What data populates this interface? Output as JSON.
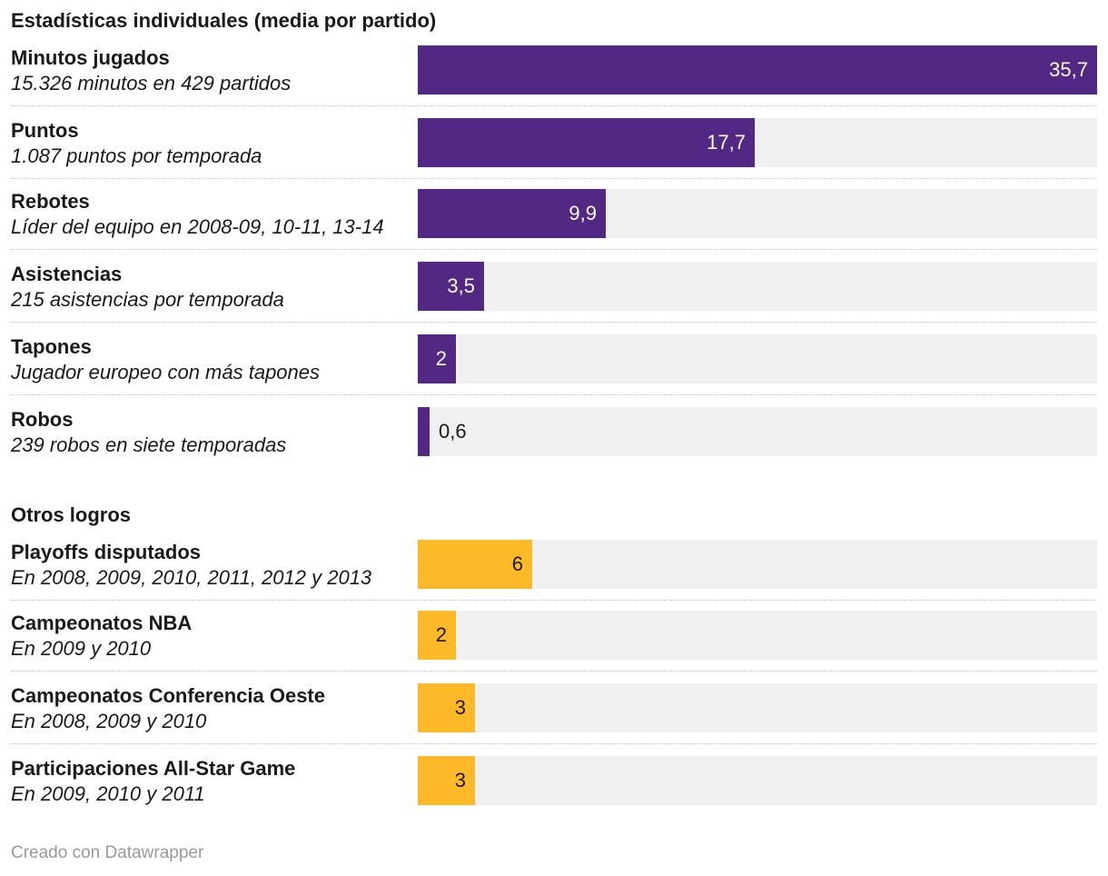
{
  "chart_data": [
    {
      "type": "bar",
      "title": "Estadísticas individuales (media por partido)",
      "bar_color": "#532784",
      "max": 35.7,
      "rows": [
        {
          "name": "Minutos jugados",
          "desc": "15.326 minutos en 429 partidos",
          "value": 35.7,
          "value_label": "35,7"
        },
        {
          "name": "Puntos",
          "desc": "1.087 puntos por temporada",
          "value": 17.7,
          "value_label": "17,7"
        },
        {
          "name": "Rebotes",
          "desc": "Líder del equipo en 2008-09, 10-11, 13-14",
          "value": 9.9,
          "value_label": "9,9"
        },
        {
          "name": "Asistencias",
          "desc": "215 asistencias por temporada",
          "value": 3.5,
          "value_label": "3,5"
        },
        {
          "name": "Tapones",
          "desc": "Jugador europeo con más tapones",
          "value": 2,
          "value_label": "2"
        },
        {
          "name": "Robos",
          "desc": "239 robos en siete temporadas",
          "value": 0.6,
          "value_label": "0,6"
        }
      ]
    },
    {
      "type": "bar",
      "title": "Otros logros",
      "bar_color": "#fdb927",
      "max": 35.7,
      "rows": [
        {
          "name": "Playoffs disputados",
          "desc": "En 2008, 2009, 2010, 2011, 2012 y 2013",
          "value": 6,
          "value_label": "6"
        },
        {
          "name": "Campeonatos NBA",
          "desc": "En 2009 y 2010",
          "value": 2,
          "value_label": "2"
        },
        {
          "name": "Campeonatos Conferencia Oeste",
          "desc": "En 2008, 2009 y 2010",
          "value": 3,
          "value_label": "3"
        },
        {
          "name": "Participaciones All-Star Game",
          "desc": "En 2009, 2010 y 2011",
          "value": 3,
          "value_label": "3"
        }
      ]
    }
  ],
  "footer": {
    "credit": "Creado con Datawrapper"
  }
}
